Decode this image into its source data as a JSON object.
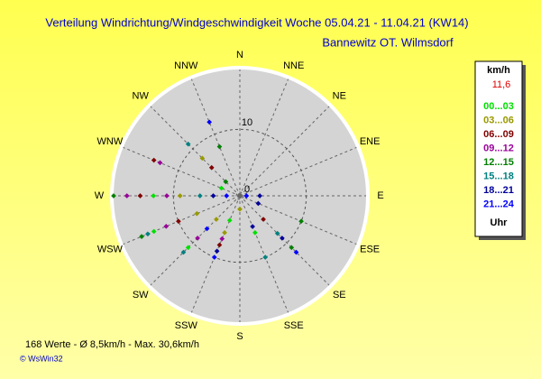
{
  "chart_data": {
    "type": "polar_scatter",
    "title": "Verteilung Windrichtung/Windgeschwindigkeit  Woche 05.04.21 - 11.04.21 (KW14)",
    "subtitle": "Bannewitz OT. Wilmsdorf",
    "directions": [
      "N",
      "NNE",
      "NE",
      "ENE",
      "E",
      "ESE",
      "SE",
      "SSE",
      "S",
      "SSW",
      "SW",
      "WSW",
      "W",
      "WNW",
      "NW",
      "NNW"
    ],
    "rlim": [
      0,
      19
    ],
    "rticks": [
      0,
      10
    ],
    "legend_unit": "km/h",
    "current_value": "11,6",
    "legend_footer": "Uhr",
    "series": [
      {
        "name": "00...03",
        "color": "#00e000",
        "x": [
          270,
          247.5,
          202.5,
          157.5,
          292.5,
          225
        ],
        "values": [
          13,
          14,
          4,
          6,
          3,
          11
        ]
      },
      {
        "name": "03...06",
        "color": "#999900",
        "x": [
          270,
          247.5,
          202.5,
          315,
          225,
          180
        ],
        "values": [
          9,
          7,
          6,
          8,
          5,
          2
        ]
      },
      {
        "name": "06...09",
        "color": "#800000",
        "x": [
          270,
          247.5,
          202.5,
          292.5,
          315,
          135
        ],
        "values": [
          15,
          10,
          8,
          14,
          6,
          5
        ]
      },
      {
        "name": "09...12",
        "color": "#990099",
        "x": [
          270,
          247.5,
          292.5,
          202.5,
          270,
          225
        ],
        "values": [
          17,
          12,
          13,
          7,
          11,
          9
        ]
      },
      {
        "name": "12...15",
        "color": "#008000",
        "x": [
          270,
          247.5,
          337.5,
          135,
          112.5,
          315
        ],
        "values": [
          19,
          16,
          8,
          11,
          10,
          3
        ]
      },
      {
        "name": "15...18",
        "color": "#008080",
        "x": [
          247.5,
          315,
          270,
          135,
          157.5,
          225
        ],
        "values": [
          15,
          11,
          6,
          8,
          10,
          12
        ]
      },
      {
        "name": "18...21",
        "color": "#000099",
        "x": [
          270,
          202.5,
          135,
          112.5,
          90,
          157.5
        ],
        "values": [
          4,
          9,
          9,
          3,
          3,
          5
        ]
      },
      {
        "name": "21...24",
        "color": "#0000ff",
        "x": [
          337.5,
          270,
          135,
          225,
          202.5,
          90
        ],
        "values": [
          12,
          2,
          12,
          7,
          10,
          1
        ]
      }
    ],
    "footer_stats": "168 Werte   -   Ø 8,5km/h  -  Max. 30,6km/h",
    "copyright": "© WsWin32"
  }
}
